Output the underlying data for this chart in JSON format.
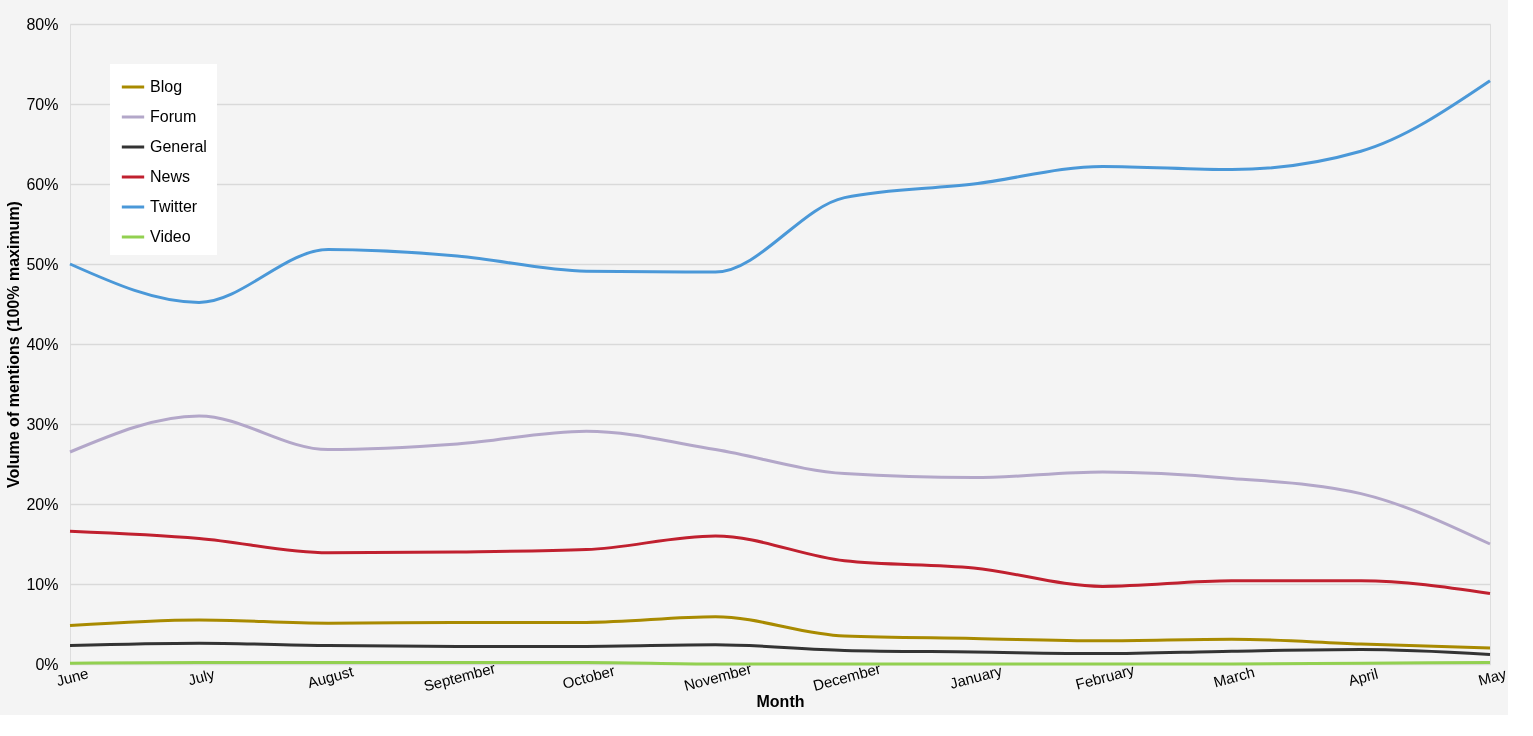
{
  "chart_data": {
    "type": "line",
    "xlabel": "Month",
    "ylabel": "Volume of mentions (100% maximum)",
    "categories": [
      "June",
      "July",
      "August",
      "September",
      "October",
      "November",
      "December",
      "January",
      "February",
      "March",
      "April",
      "May"
    ],
    "series": [
      {
        "name": "Blog",
        "color": "#a88a00",
        "values": [
          4.8,
          5.5,
          5.1,
          5.2,
          5.2,
          5.9,
          3.5,
          3.2,
          2.9,
          3.1,
          2.5,
          2.0
        ]
      },
      {
        "name": "Forum",
        "color": "#b3a7c9",
        "values": [
          26.5,
          31,
          26.8,
          27.5,
          29.1,
          26.8,
          23.8,
          23.3,
          24,
          23.2,
          21.3,
          15
        ]
      },
      {
        "name": "General",
        "color": "#333333",
        "values": [
          2.3,
          2.6,
          2.3,
          2.2,
          2.2,
          2.4,
          1.7,
          1.5,
          1.3,
          1.6,
          1.8,
          1.2
        ]
      },
      {
        "name": "News",
        "color": "#c0202f",
        "values": [
          16.6,
          15.7,
          13.9,
          14,
          14.3,
          16,
          12.9,
          12,
          9.7,
          10.4,
          10.4,
          8.8
        ]
      },
      {
        "name": "Twitter",
        "color": "#4a98d8",
        "values": [
          50,
          45.2,
          51.8,
          51,
          49.1,
          49,
          58.3,
          60,
          62.2,
          61.8,
          64.1,
          72.9
        ]
      },
      {
        "name": "Video",
        "color": "#92d050",
        "values": [
          0.1,
          0.2,
          0.2,
          0.2,
          0.2,
          0,
          0,
          0,
          0,
          0,
          0.1,
          0.2
        ]
      }
    ],
    "ylim": [
      0,
      80
    ],
    "yticks": [
      {
        "value": 0,
        "label": "0%"
      },
      {
        "value": 10,
        "label": "10%"
      },
      {
        "value": 20,
        "label": "20%"
      },
      {
        "value": 30,
        "label": "30%"
      },
      {
        "value": 40,
        "label": "40%"
      },
      {
        "value": 50,
        "label": "50%"
      },
      {
        "value": 60,
        "label": "60%"
      },
      {
        "value": 70,
        "label": "70%"
      },
      {
        "value": 80,
        "label": "80%"
      }
    ],
    "grid": "y",
    "legend": "top left",
    "marker": "none",
    "line_style": "solid"
  }
}
